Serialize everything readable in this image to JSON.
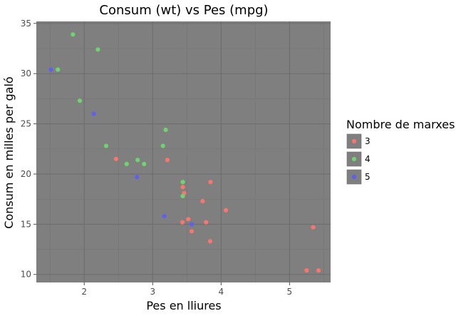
{
  "chart_data": {
    "type": "scatter",
    "title": "Consum (wt) vs Pes (mpg)",
    "xlabel": "Pes en lliures",
    "ylabel": "Consum en milles per galó",
    "xlim": [
      1.3,
      5.6
    ],
    "ylim": [
      9.2,
      35.2
    ],
    "x_ticks": [
      2,
      3,
      4,
      5
    ],
    "y_ticks": [
      10,
      15,
      20,
      25,
      30,
      35
    ],
    "grid": true,
    "legend": {
      "title": "Nombre de marxes",
      "placement": "right",
      "entries": [
        "3",
        "4",
        "5"
      ]
    },
    "colors": {
      "panel": "#7f7f7f",
      "grid_major": "#6b6b6b",
      "grid_minor": "#767676",
      "3": "#f8766d",
      "4": "#6fd36f",
      "5": "#6060f0"
    },
    "series": [
      {
        "name": "3",
        "points": [
          [
            2.465,
            21.5
          ],
          [
            3.215,
            21.4
          ],
          [
            3.44,
            18.7
          ],
          [
            3.46,
            18.1
          ],
          [
            3.57,
            14.3
          ],
          [
            4.07,
            16.4
          ],
          [
            3.73,
            17.3
          ],
          [
            3.78,
            15.2
          ],
          [
            5.25,
            10.4
          ],
          [
            5.424,
            10.4
          ],
          [
            5.345,
            14.7
          ],
          [
            3.52,
            15.5
          ],
          [
            3.435,
            15.2
          ],
          [
            3.84,
            13.3
          ],
          [
            3.845,
            19.2
          ]
        ]
      },
      {
        "name": "4",
        "points": [
          [
            2.62,
            21.0
          ],
          [
            2.875,
            21.0
          ],
          [
            2.32,
            22.8
          ],
          [
            3.19,
            24.4
          ],
          [
            3.15,
            22.8
          ],
          [
            3.44,
            19.2
          ],
          [
            3.44,
            17.8
          ],
          [
            2.2,
            32.4
          ],
          [
            1.615,
            30.4
          ],
          [
            1.835,
            33.9
          ],
          [
            1.935,
            27.3
          ],
          [
            2.78,
            21.4
          ]
        ]
      },
      {
        "name": "5",
        "points": [
          [
            2.14,
            26.0
          ],
          [
            1.513,
            30.4
          ],
          [
            3.17,
            15.8
          ],
          [
            2.77,
            19.7
          ],
          [
            3.57,
            15.0
          ]
        ]
      }
    ]
  }
}
